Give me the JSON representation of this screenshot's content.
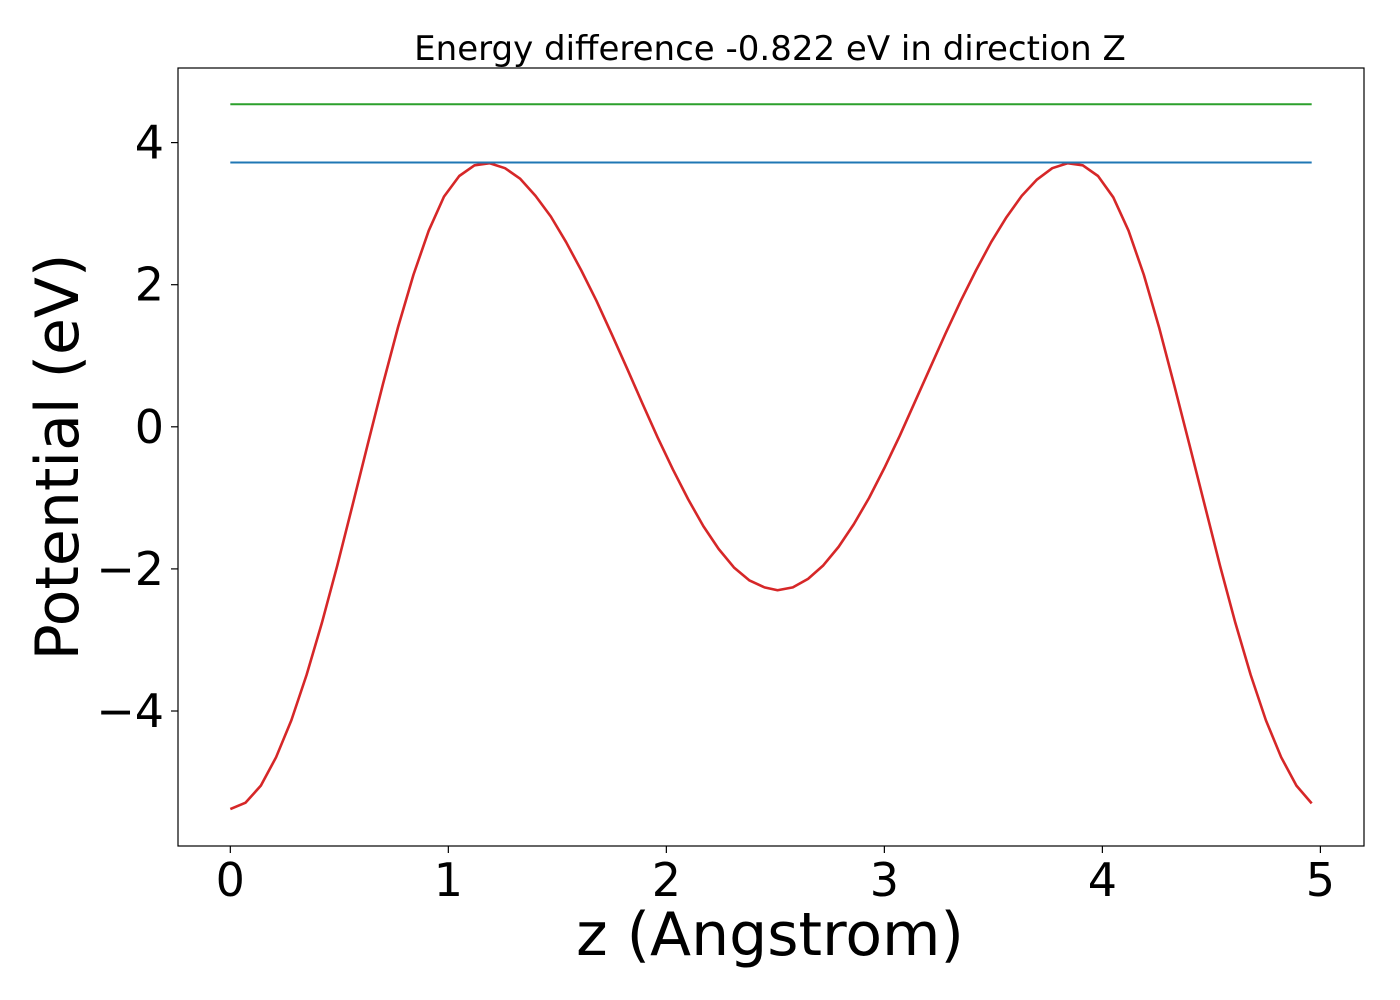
{
  "chart_data": {
    "type": "line",
    "title": "Energy difference -0.822 eV in direction Z",
    "xlabel": "z (Angstrom)",
    "ylabel": "Potential (eV)",
    "xlim": [
      -0.24,
      5.2
    ],
    "ylim": [
      -5.9,
      5.05
    ],
    "xticks": [
      0,
      1,
      2,
      3,
      4,
      5
    ],
    "yticks": [
      -4,
      -2,
      0,
      2,
      4
    ],
    "ytick_labels": [
      "−4",
      "−2",
      "0",
      "2",
      "4"
    ],
    "grid": false,
    "series": [
      {
        "color": "#d62728",
        "x": [
          0.0,
          0.07,
          0.14,
          0.21,
          0.28,
          0.35,
          0.42,
          0.49,
          0.56,
          0.63,
          0.7,
          0.77,
          0.84,
          0.91,
          0.98,
          1.05,
          1.12,
          1.19,
          1.26,
          1.33,
          1.4,
          1.47,
          1.54,
          1.61,
          1.68,
          1.75,
          1.82,
          1.89,
          1.96,
          2.03,
          2.1,
          2.17,
          2.24,
          2.31,
          2.38,
          2.45,
          2.51,
          2.58,
          2.65,
          2.72,
          2.79,
          2.86,
          2.93,
          3.0,
          3.07,
          3.14,
          3.21,
          3.28,
          3.35,
          3.42,
          3.49,
          3.56,
          3.63,
          3.7,
          3.77,
          3.84,
          3.91,
          3.98,
          4.05,
          4.12,
          4.19,
          4.26,
          4.33,
          4.4,
          4.47,
          4.54,
          4.61,
          4.68,
          4.75,
          4.82,
          4.89,
          4.96
        ],
        "y": [
          -5.38,
          -5.29,
          -5.05,
          -4.65,
          -4.13,
          -3.49,
          -2.76,
          -1.96,
          -1.11,
          -0.25,
          0.6,
          1.41,
          2.14,
          2.76,
          3.24,
          3.53,
          3.68,
          3.71,
          3.64,
          3.49,
          3.25,
          2.96,
          2.6,
          2.2,
          1.77,
          1.3,
          0.82,
          0.33,
          -0.15,
          -0.6,
          -1.02,
          -1.4,
          -1.72,
          -1.98,
          -2.16,
          -2.26,
          -2.3,
          -2.26,
          -2.14,
          -1.95,
          -1.69,
          -1.37,
          -1.0,
          -0.58,
          -0.13,
          0.35,
          0.83,
          1.31,
          1.77,
          2.2,
          2.6,
          2.95,
          3.25,
          3.48,
          3.64,
          3.71,
          3.68,
          3.53,
          3.23,
          2.76,
          2.14,
          1.4,
          0.58,
          -0.26,
          -1.11,
          -1.96,
          -2.76,
          -3.49,
          -4.13,
          -4.65,
          -5.05,
          -5.3
        ]
      },
      {
        "color": "#1f77b4",
        "x": [
          0.0,
          4.96
        ],
        "y": [
          3.72,
          3.72
        ]
      },
      {
        "color": "#2ca02c",
        "x": [
          0.0,
          4.96
        ],
        "y": [
          4.54,
          4.54
        ]
      }
    ]
  }
}
